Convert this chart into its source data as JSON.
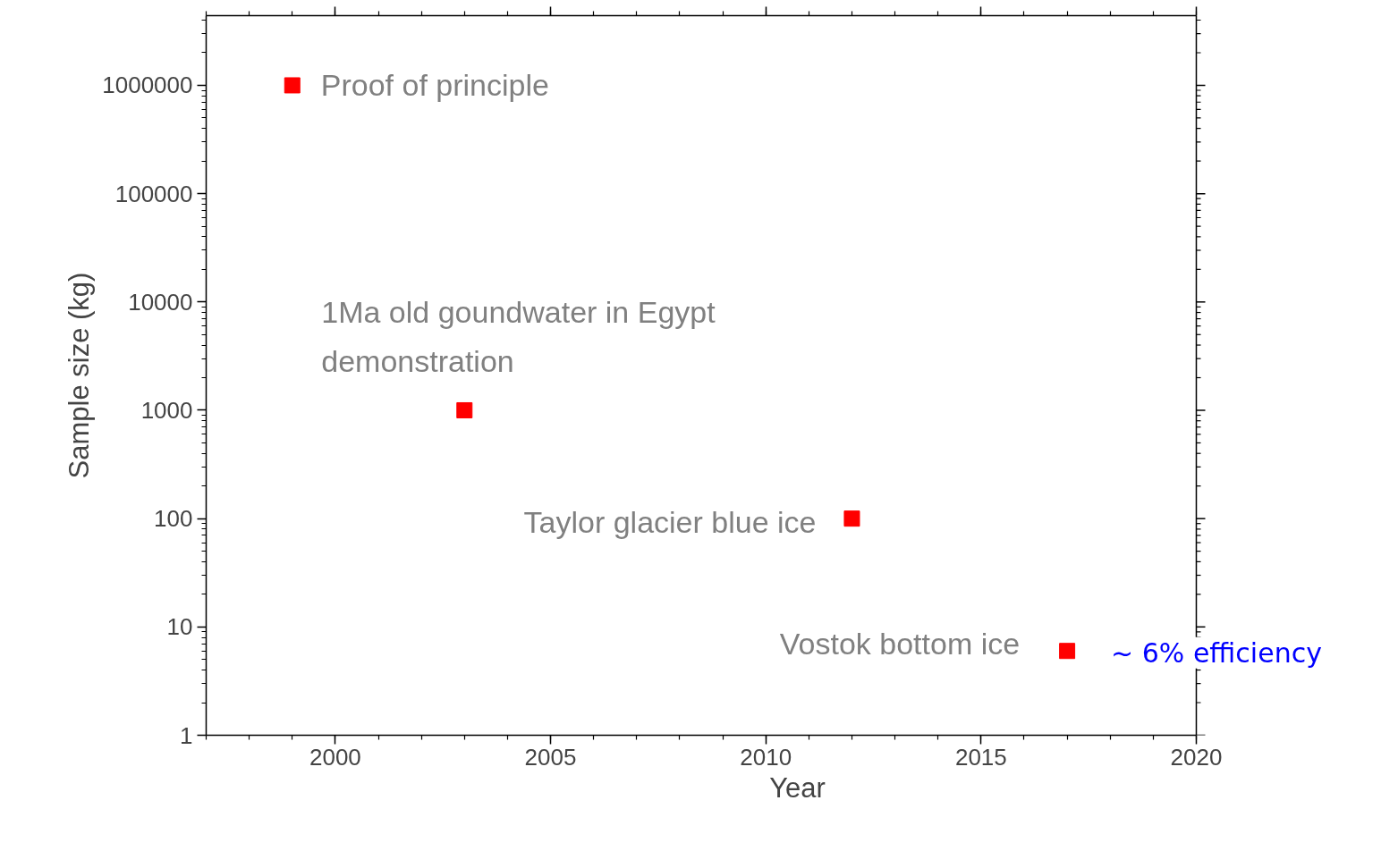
{
  "chart_data": {
    "type": "scatter",
    "xlabel": "Year",
    "ylabel": "Sample size (kg)",
    "x": [
      1999,
      2003,
      2012,
      2017
    ],
    "values": [
      1000000,
      1000,
      100,
      6
    ],
    "color": "#ff0000",
    "marker": "square",
    "log": "y",
    "grid": false,
    "xlim": [
      1997,
      2020
    ],
    "xticks": [
      2000,
      2005,
      2010,
      2015,
      2020
    ],
    "ylim": [
      1,
      4400000
    ],
    "yticks": [
      1,
      10,
      100,
      1000,
      10000,
      100000,
      1000000
    ],
    "annotations": [
      {
        "text": "Proof of principle",
        "x": 1999,
        "y": 1000000
      },
      {
        "text": "1Ma old goundwater in Egypt\ndemonstration",
        "x": 2003,
        "y": 1000
      },
      {
        "text": "Taylor glacier blue ice",
        "x": 2012,
        "y": 100
      },
      {
        "text": "Vostok bottom ice",
        "x": 2017,
        "y": 6
      },
      {
        "text": "~ 6% efficiency",
        "x": 2017,
        "y": 6
      }
    ]
  }
}
